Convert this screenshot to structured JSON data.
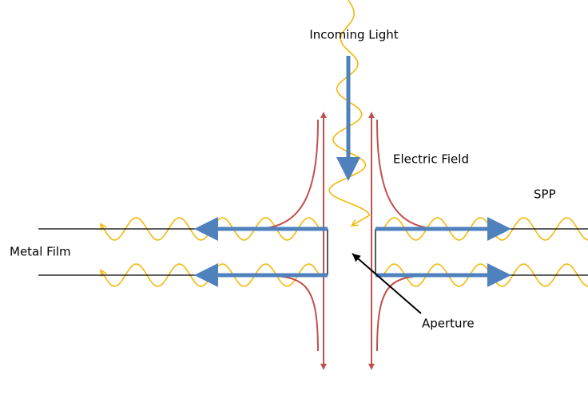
{
  "labels": {
    "incoming_light": "Incoming Light",
    "electric_field": "Electric Field",
    "spp": "SPP",
    "metal_film": "Metal Film",
    "aperture": "Aperture"
  }
}
